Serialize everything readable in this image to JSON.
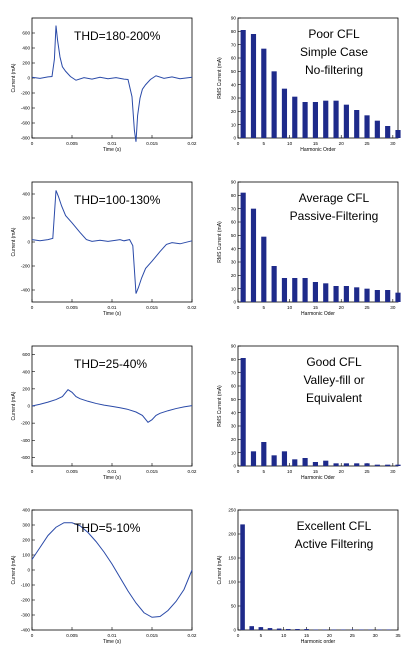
{
  "chart_data": [
    {
      "type": "line",
      "row": 1,
      "annotation": "THD=180-200%",
      "xlabel": "Time (s)",
      "ylabel": "Current (mA)",
      "xlim": [
        0,
        0.02
      ],
      "ylim": [
        -800,
        800
      ],
      "x_ticks": [
        "0",
        "0.005",
        "0.01",
        "0.015",
        "0.02"
      ],
      "y_ticks": [
        "-800",
        "-600",
        "-400",
        "-200",
        "0",
        "200",
        "400",
        "600"
      ],
      "color": "#2a4aa8",
      "series": [
        {
          "x": [
            0,
            0.001,
            0.002,
            0.0025,
            0.0028,
            0.003,
            0.0032,
            0.0035,
            0.0038,
            0.0042,
            0.0048,
            0.0055,
            0.0065,
            0.0075,
            0.0085,
            0.0095,
            0.0105,
            0.0115,
            0.012,
            0.0125,
            0.0128,
            0.013,
            0.0132,
            0.0135,
            0.0138,
            0.0142,
            0.0148,
            0.0155,
            0.0165,
            0.0175,
            0.0185,
            0.02
          ],
          "y": [
            10,
            -5,
            15,
            20,
            250,
            700,
            500,
            280,
            150,
            90,
            20,
            -30,
            5,
            -15,
            10,
            -10,
            5,
            -15,
            -20,
            -250,
            -700,
            -850,
            -500,
            -270,
            -150,
            -90,
            -20,
            30,
            -5,
            15,
            -10,
            10
          ]
        }
      ]
    },
    {
      "type": "bar",
      "row": 1,
      "annotation": [
        "Poor CFL",
        "Simple Case",
        "No-filtering"
      ],
      "xlabel": "Harmonic Order",
      "ylabel": "RMS Current (mA)",
      "xlim": [
        0,
        31
      ],
      "ylim": [
        0,
        90
      ],
      "x_ticks": [
        "0",
        "5",
        "10",
        "15",
        "20",
        "25",
        "30"
      ],
      "y_ticks": [
        "0",
        "10",
        "20",
        "30",
        "40",
        "50",
        "60",
        "70",
        "80",
        "90"
      ],
      "color": "#1e2a8a",
      "categories": [
        1,
        3,
        5,
        7,
        9,
        11,
        13,
        15,
        17,
        19,
        21,
        23,
        25,
        27,
        29,
        31
      ],
      "values": [
        81,
        78,
        67,
        50,
        37,
        31,
        27,
        27,
        28,
        28,
        25,
        21,
        17,
        13,
        9,
        6
      ]
    },
    {
      "type": "line",
      "row": 2,
      "annotation": "THD=100-130%",
      "xlabel": "Time (s)",
      "ylabel": "Current (mA)",
      "xlim": [
        0,
        0.02
      ],
      "ylim": [
        -500,
        500
      ],
      "x_ticks": [
        "0",
        "0.005",
        "0.01",
        "0.015",
        "0.02"
      ],
      "y_ticks": [
        "-400",
        "-200",
        "0",
        "200",
        "400"
      ],
      "color": "#2a4aa8",
      "series": [
        {
          "x": [
            0,
            0.001,
            0.002,
            0.0026,
            0.003,
            0.0033,
            0.0037,
            0.0042,
            0.005,
            0.006,
            0.0068,
            0.0075,
            0.0085,
            0.0095,
            0.0105,
            0.011,
            0.0115,
            0.0122,
            0.0126,
            0.013,
            0.0133,
            0.0137,
            0.0142,
            0.015,
            0.016,
            0.0168,
            0.0175,
            0.0185,
            0.02
          ],
          "y": [
            20,
            10,
            20,
            30,
            430,
            380,
            300,
            220,
            160,
            80,
            20,
            5,
            15,
            5,
            15,
            20,
            10,
            20,
            -30,
            -430,
            -380,
            -300,
            -220,
            -160,
            -80,
            -20,
            -5,
            -15,
            10
          ]
        }
      ]
    },
    {
      "type": "bar",
      "row": 2,
      "annotation": [
        "Average CFL",
        "Passive-Filtering"
      ],
      "xlabel": "Harmonic Oder",
      "ylabel": "RMS Current (mA)",
      "xlim": [
        0,
        31
      ],
      "ylim": [
        0,
        90
      ],
      "x_ticks": [
        "0",
        "5",
        "10",
        "15",
        "20",
        "25",
        "30"
      ],
      "y_ticks": [
        "0",
        "10",
        "20",
        "30",
        "40",
        "50",
        "60",
        "70",
        "80",
        "90"
      ],
      "color": "#1e2a8a",
      "categories": [
        1,
        3,
        5,
        7,
        9,
        11,
        13,
        15,
        17,
        19,
        21,
        23,
        25,
        27,
        29,
        31
      ],
      "values": [
        82,
        70,
        49,
        27,
        18,
        18,
        18,
        15,
        14,
        12,
        12,
        11,
        10,
        9,
        9,
        7
      ]
    },
    {
      "type": "line",
      "row": 3,
      "annotation": "THD=25-40%",
      "xlabel": "Time (s)",
      "ylabel": "Current (mA)",
      "xlim": [
        0,
        0.02
      ],
      "ylim": [
        -700,
        700
      ],
      "x_ticks": [
        "0",
        "0.005",
        "0.01",
        "0.015",
        "0.02"
      ],
      "y_ticks": [
        "-600",
        "-400",
        "-200",
        "0",
        "200",
        "400",
        "600"
      ],
      "color": "#2a4aa8",
      "series": [
        {
          "x": [
            0,
            0.001,
            0.002,
            0.003,
            0.0038,
            0.0045,
            0.005,
            0.0055,
            0.006,
            0.007,
            0.008,
            0.009,
            0.01,
            0.011,
            0.012,
            0.013,
            0.0138,
            0.0145,
            0.015,
            0.0155,
            0.016,
            0.017,
            0.018,
            0.019,
            0.02
          ],
          "y": [
            0,
            20,
            45,
            75,
            110,
            190,
            160,
            110,
            85,
            55,
            30,
            10,
            -5,
            -20,
            -40,
            -70,
            -110,
            -190,
            -160,
            -110,
            -85,
            -55,
            -30,
            -10,
            5
          ]
        }
      ]
    },
    {
      "type": "bar",
      "row": 3,
      "annotation": [
        "Good CFL",
        "Valley-fill or",
        "Equivalent"
      ],
      "xlabel": "Harmonic Oder",
      "ylabel": "RMS Current (mA)",
      "xlim": [
        0,
        31
      ],
      "ylim": [
        0,
        90
      ],
      "x_ticks": [
        "0",
        "5",
        "10",
        "15",
        "20",
        "25",
        "30"
      ],
      "y_ticks": [
        "0",
        "10",
        "20",
        "30",
        "40",
        "50",
        "60",
        "70",
        "80",
        "90"
      ],
      "color": "#1e2a8a",
      "categories": [
        1,
        3,
        5,
        7,
        9,
        11,
        13,
        15,
        17,
        19,
        21,
        23,
        25,
        27,
        29,
        31
      ],
      "values": [
        81,
        11,
        18,
        8,
        11,
        5,
        6,
        3,
        4,
        2,
        2,
        2,
        2,
        1,
        1,
        1
      ]
    },
    {
      "type": "line",
      "row": 4,
      "annotation": "THD=5-10%",
      "xlabel": "Time (s)",
      "ylabel": "Current (mA)",
      "xlim": [
        0,
        0.02
      ],
      "ylim": [
        -400,
        400
      ],
      "x_ticks": [
        "0",
        "0.005",
        "0.01",
        "0.015",
        "0.02"
      ],
      "y_ticks": [
        "-400",
        "-300",
        "-200",
        "-100",
        "0",
        "100",
        "200",
        "300",
        "400"
      ],
      "color": "#2a4aa8",
      "series": [
        {
          "x": [
            0,
            0.001,
            0.002,
            0.003,
            0.004,
            0.005,
            0.006,
            0.007,
            0.008,
            0.009,
            0.01,
            0.011,
            0.012,
            0.013,
            0.014,
            0.015,
            0.016,
            0.017,
            0.018,
            0.019,
            0.02
          ],
          "y": [
            70,
            150,
            230,
            285,
            315,
            315,
            295,
            250,
            190,
            120,
            40,
            -50,
            -140,
            -220,
            -285,
            -315,
            -310,
            -270,
            -210,
            -130,
            0
          ]
        }
      ]
    },
    {
      "type": "bar",
      "row": 4,
      "annotation": [
        "Excellent CFL",
        "Active Filtering"
      ],
      "xlabel": "Harmonic order",
      "ylabel": "Current (mA)",
      "xlim": [
        0,
        35
      ],
      "ylim": [
        0,
        250
      ],
      "x_ticks": [
        "0",
        "5",
        "10",
        "15",
        "20",
        "25",
        "30",
        "35"
      ],
      "y_ticks": [
        "0",
        "50",
        "100",
        "150",
        "200",
        "250"
      ],
      "color": "#1e2a8a",
      "categories": [
        1,
        3,
        5,
        7,
        9,
        11,
        13,
        15,
        17,
        19,
        21,
        23,
        25,
        27,
        29,
        31,
        33
      ],
      "values": [
        220,
        8,
        6,
        4,
        3,
        2,
        2,
        2,
        1,
        1,
        1,
        1,
        1,
        1,
        1,
        1,
        1
      ]
    }
  ]
}
